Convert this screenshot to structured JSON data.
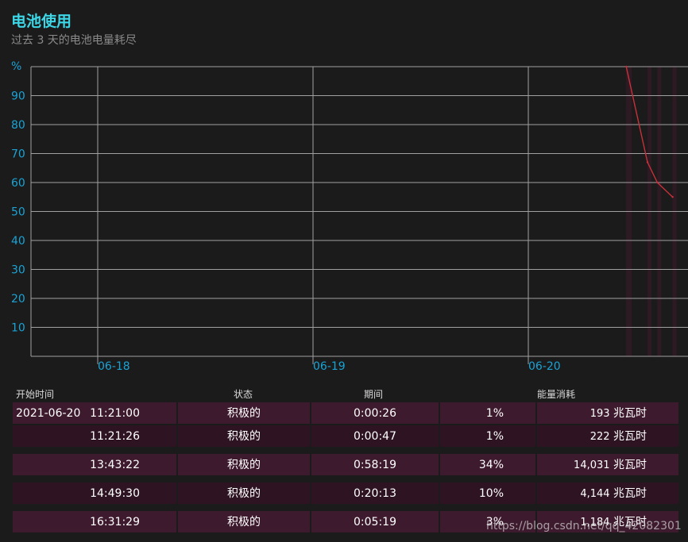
{
  "header": {
    "title": "电池使用",
    "subtitle": "过去 3 天的电池电量耗尽"
  },
  "chart_data": {
    "type": "line",
    "ylabel": "%",
    "y_ticks": [
      "90",
      "80",
      "70",
      "60",
      "50",
      "40",
      "30",
      "20",
      "10"
    ],
    "ylim": [
      0,
      100
    ],
    "x_ticks": [
      "06-18",
      "06-19",
      "06-20"
    ],
    "grid": true,
    "colors": {
      "line": "#c8303a",
      "grid": "#a0a0a0",
      "axis_text": "#1aa3d6",
      "active_band": "#3a1a2a"
    },
    "series": [
      {
        "values": [
          {
            "x": "2021-06-20 11:21:00",
            "y": 100
          },
          {
            "x": "2021-06-20 13:43:22",
            "y": 67
          },
          {
            "x": "2021-06-20 14:49:30",
            "y": 60
          },
          {
            "x": "2021-06-20 16:31:29",
            "y": 55
          }
        ]
      }
    ]
  },
  "table": {
    "headers": {
      "start": "开始时间",
      "state": "状态",
      "duration": "期间",
      "energy": "能量消耗"
    },
    "rows": [
      {
        "date": "2021-06-20",
        "time": "11:21:00",
        "state": "积极的",
        "duration": "0:00:26",
        "percent": "1%",
        "energy_value": "193",
        "energy_unit": "兆瓦时"
      },
      {
        "date": "",
        "time": "11:21:26",
        "state": "积极的",
        "duration": "0:00:47",
        "percent": "1%",
        "energy_value": "222",
        "energy_unit": "兆瓦时"
      },
      {
        "date": "",
        "time": "13:43:22",
        "state": "积极的",
        "duration": "0:58:19",
        "percent": "34%",
        "energy_value": "14,031",
        "energy_unit": "兆瓦时"
      },
      {
        "date": "",
        "time": "14:49:30",
        "state": "积极的",
        "duration": "0:20:13",
        "percent": "10%",
        "energy_value": "4,144",
        "energy_unit": "兆瓦时"
      },
      {
        "date": "",
        "time": "16:31:29",
        "state": "积极的",
        "duration": "0:05:19",
        "percent": "3%",
        "energy_value": "1,184",
        "energy_unit": "兆瓦时"
      }
    ]
  },
  "watermark": "https://blog.csdn.net/qq_42082301"
}
